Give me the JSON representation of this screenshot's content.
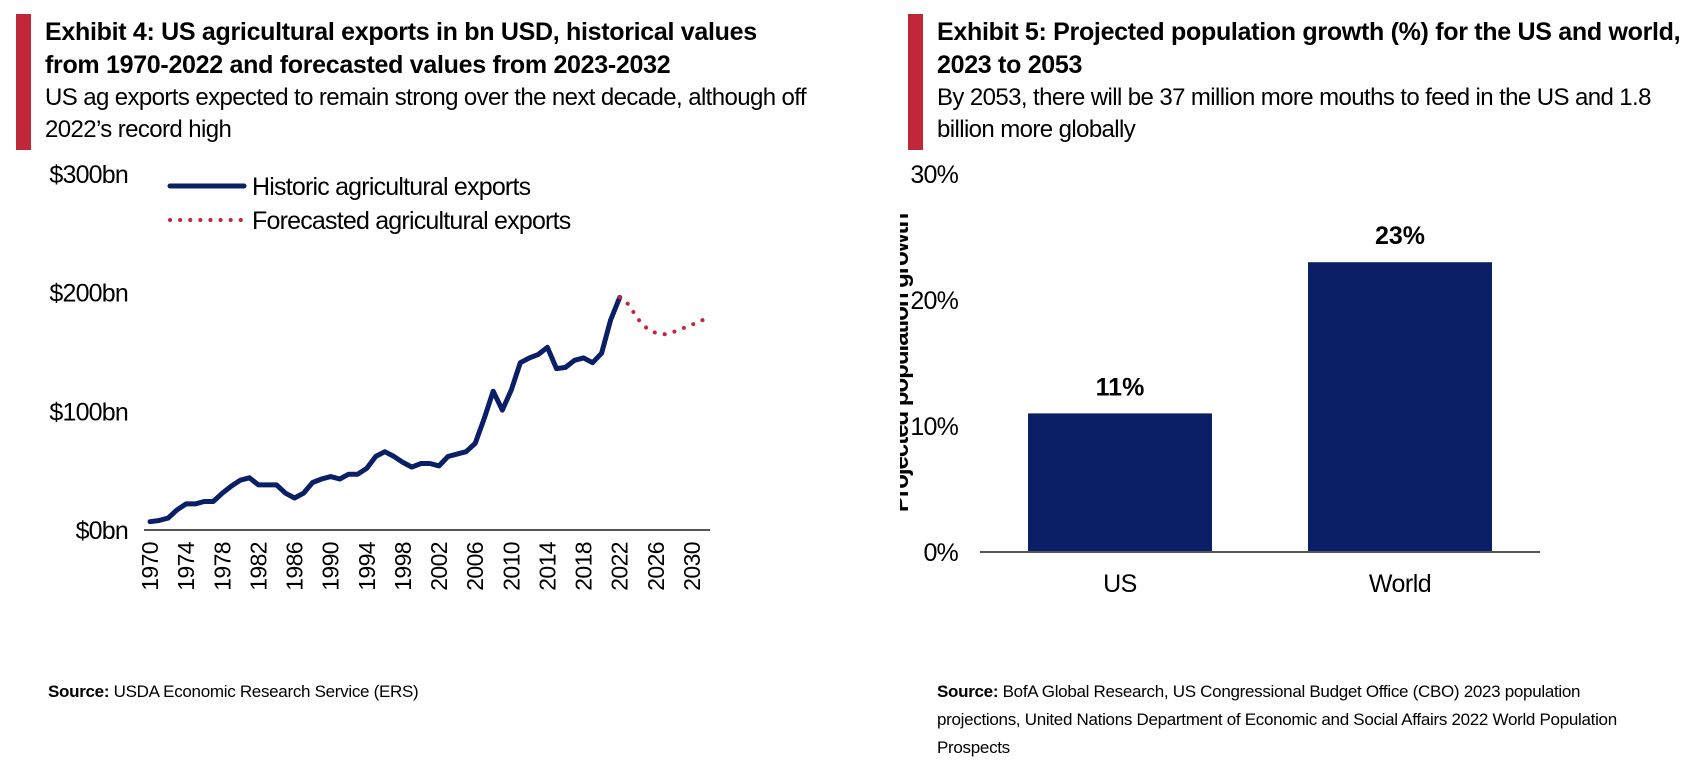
{
  "exhibit4": {
    "title": "Exhibit 4: US agricultural exports in bn USD, historical values from 1970-2022 and forecasted values from 2023-2032",
    "subtitle": "US ag exports expected to remain strong over the next decade, although off 2022’s record high",
    "source_label": "Source:",
    "source_text": "USDA Economic Research Service (ERS)",
    "colors": {
      "historic": "#0b1f66",
      "forecast": "#c0283a",
      "accent": "#c0283a"
    },
    "chart_data": {
      "type": "line",
      "y_ticks": [
        "$0bn",
        "$100bn",
        "$200bn",
        "$300bn"
      ],
      "ylim": [
        0,
        300
      ],
      "xlim": [
        1970,
        2032
      ],
      "x_ticks": [
        "1970",
        "1974",
        "1978",
        "1982",
        "1986",
        "1990",
        "1994",
        "1998",
        "2002",
        "2006",
        "2010",
        "2014",
        "2018",
        "2022",
        "2026",
        "2030"
      ],
      "legend": "top-left",
      "series": [
        {
          "name": "Historic agricultural exports",
          "style": "solid",
          "points": [
            [
              1970,
              7
            ],
            [
              1971,
              8
            ],
            [
              1972,
              10
            ],
            [
              1973,
              17
            ],
            [
              1974,
              22
            ],
            [
              1975,
              22
            ],
            [
              1976,
              24
            ],
            [
              1977,
              24
            ],
            [
              1978,
              31
            ],
            [
              1979,
              37
            ],
            [
              1980,
              42
            ],
            [
              1981,
              44
            ],
            [
              1982,
              38
            ],
            [
              1983,
              38
            ],
            [
              1984,
              38
            ],
            [
              1985,
              31
            ],
            [
              1986,
              27
            ],
            [
              1987,
              31
            ],
            [
              1988,
              40
            ],
            [
              1989,
              43
            ],
            [
              1990,
              45
            ],
            [
              1991,
              43
            ],
            [
              1992,
              47
            ],
            [
              1993,
              47
            ],
            [
              1994,
              52
            ],
            [
              1995,
              62
            ],
            [
              1996,
              66
            ],
            [
              1997,
              62
            ],
            [
              1998,
              57
            ],
            [
              1999,
              53
            ],
            [
              2000,
              56
            ],
            [
              2001,
              56
            ],
            [
              2002,
              54
            ],
            [
              2003,
              62
            ],
            [
              2004,
              64
            ],
            [
              2005,
              66
            ],
            [
              2006,
              73
            ],
            [
              2007,
              94
            ],
            [
              2008,
              117
            ],
            [
              2009,
              101
            ],
            [
              2010,
              118
            ],
            [
              2011,
              141
            ],
            [
              2012,
              145
            ],
            [
              2013,
              148
            ],
            [
              2014,
              154
            ],
            [
              2015,
              136
            ],
            [
              2016,
              137
            ],
            [
              2017,
              143
            ],
            [
              2018,
              145
            ],
            [
              2019,
              141
            ],
            [
              2020,
              149
            ],
            [
              2021,
              177
            ],
            [
              2022,
              196
            ]
          ]
        },
        {
          "name": "Forecasted agricultural exports",
          "style": "dotted",
          "points": [
            [
              2022,
              196
            ],
            [
              2023,
              190
            ],
            [
              2024,
              178
            ],
            [
              2025,
              170
            ],
            [
              2026,
              166
            ],
            [
              2027,
              165
            ],
            [
              2028,
              167
            ],
            [
              2029,
              170
            ],
            [
              2030,
              173
            ],
            [
              2031,
              176
            ],
            [
              2032,
              181
            ]
          ]
        }
      ]
    }
  },
  "exhibit5": {
    "title": "Exhibit 5: Projected population growth (%) for the US and world, 2023 to 2053",
    "subtitle": "By 2053, there will be 37 million more mouths to feed in the US and 1.8 billion more globally",
    "source_label": "Source:",
    "source_text": "BofA Global Research, US Congressional Budget Office (CBO) 2023 population projections, United Nations Department of Economic and Social Affairs 2022 World Population Prospects",
    "colors": {
      "bar": "#0b1f66",
      "accent": "#c0283a"
    },
    "chart_data": {
      "type": "bar",
      "categories": [
        "US",
        "World"
      ],
      "values": [
        11,
        23
      ],
      "value_labels": [
        "11%",
        "23%"
      ],
      "ylabel": "Projected population growth",
      "y_ticks": [
        "0%",
        "10%",
        "20%",
        "30%"
      ],
      "ylim": [
        0,
        30
      ]
    }
  }
}
